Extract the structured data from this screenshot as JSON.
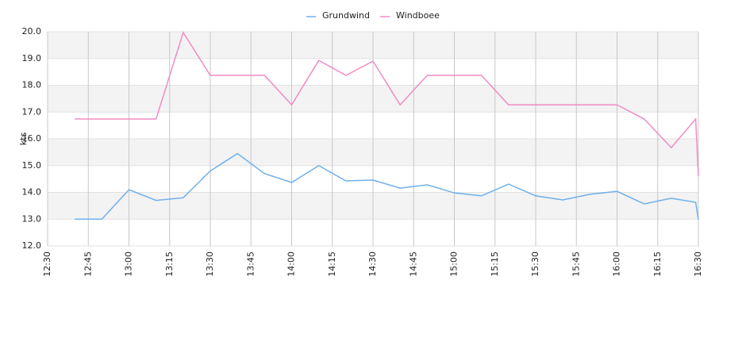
{
  "chart_data": {
    "type": "line",
    "y_label": "kts",
    "x": [
      "12:40",
      "12:50",
      "13:00",
      "13:10",
      "13:20",
      "13:30",
      "13:40",
      "13:50",
      "14:00",
      "14:10",
      "14:20",
      "14:30",
      "14:40",
      "14:50",
      "15:00",
      "15:10",
      "15:20",
      "15:30",
      "15:40",
      "15:50",
      "16:00",
      "16:10",
      "16:20",
      "16:29",
      "16:30"
    ],
    "series": [
      {
        "name": "Grundwind",
        "color": "#6fb0ec",
        "values": [
          13.0,
          13.0,
          14.1,
          13.7,
          13.8,
          14.8,
          15.45,
          14.7,
          14.37,
          15.0,
          14.43,
          14.46,
          14.16,
          14.28,
          13.98,
          13.87,
          14.31,
          13.87,
          13.72,
          13.93,
          14.04,
          13.57,
          13.78,
          13.63,
          12.98
        ]
      },
      {
        "name": "Windboee",
        "color": "#f08cc4",
        "values": [
          16.74,
          16.74,
          16.74,
          16.74,
          19.97,
          18.37,
          18.37,
          18.37,
          17.27,
          18.93,
          18.37,
          18.9,
          17.27,
          18.37,
          18.37,
          18.37,
          17.27,
          17.27,
          17.27,
          17.27,
          17.27,
          16.74,
          15.67,
          16.74,
          14.6
        ]
      }
    ],
    "xlim": [
      "12:30",
      "16:30"
    ],
    "xticks": [
      "12:30",
      "12:45",
      "13:00",
      "13:15",
      "13:30",
      "13:45",
      "14:00",
      "14:15",
      "14:30",
      "14:45",
      "15:00",
      "15:15",
      "15:30",
      "15:45",
      "16:00",
      "16:15",
      "16:30"
    ],
    "ylim": [
      12,
      20
    ],
    "yticks": [
      {
        "value": 12,
        "label": "12.0"
      },
      {
        "value": 13,
        "label": "13.0"
      },
      {
        "value": 14,
        "label": "14.0"
      },
      {
        "value": 15,
        "label": "15.0"
      },
      {
        "value": 16,
        "label": "16.0"
      },
      {
        "value": 17,
        "label": "17.0"
      },
      {
        "value": 18,
        "label": "18.0"
      },
      {
        "value": 19,
        "label": "19.0"
      },
      {
        "value": 20,
        "label": "20.0"
      }
    ],
    "grid": true,
    "legend": "top"
  }
}
